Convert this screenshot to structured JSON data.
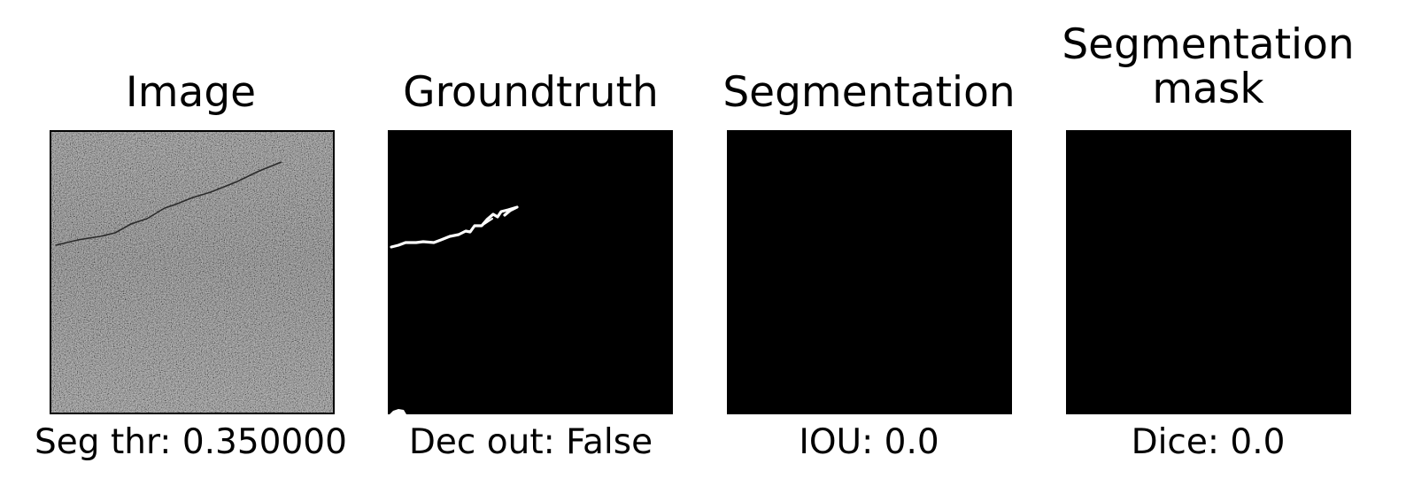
{
  "panels": [
    {
      "title": "Image",
      "caption": "Seg thr: 0.350000"
    },
    {
      "title": "Groundtruth",
      "caption": "Dec out: False"
    },
    {
      "title": "Segmentation",
      "caption": "IOU: 0.0"
    },
    {
      "title": "Segmentation\nmask",
      "caption": "Dice: 0.0"
    }
  ]
}
